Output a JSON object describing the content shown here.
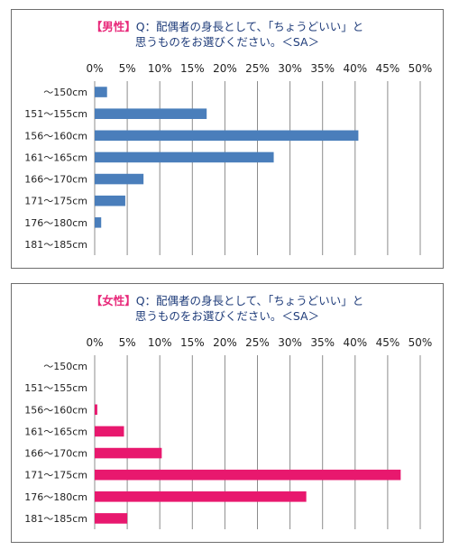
{
  "chart_data": [
    {
      "type": "bar",
      "orientation": "horizontal",
      "title_tag": "【男性】",
      "title_rest": "Q：配偶者の身長として、「ちょうどいい」と",
      "title_line2": "思うものをお選びください。＜SA＞",
      "categories": [
        "～150cm",
        "151～155cm",
        "156～160cm",
        "161～165cm",
        "166～170cm",
        "171～175cm",
        "176～180cm",
        "181～185cm"
      ],
      "values": [
        1.9,
        17.2,
        40.5,
        27.5,
        7.5,
        4.7,
        1.0,
        0
      ],
      "ticks": [
        "0%",
        "5%",
        "10%",
        "15%",
        "20%",
        "25%",
        "30%",
        "35%",
        "40%",
        "45%",
        "50%"
      ],
      "xlim": [
        0,
        50
      ],
      "grid": true,
      "color": "#4a7ebb",
      "tag_color": "#e8297a",
      "title_color": "#1f3c7a"
    },
    {
      "type": "bar",
      "orientation": "horizontal",
      "title_tag": "【女性】",
      "title_rest": "Q：配偶者の身長として、「ちょうどいい」と",
      "title_line2": "思うものをお選びください。＜SA＞",
      "categories": [
        "～150cm",
        "151～155cm",
        "156～160cm",
        "161～165cm",
        "166～170cm",
        "171～175cm",
        "176～180cm",
        "181～185cm"
      ],
      "values": [
        0,
        0,
        0.4,
        4.5,
        10.3,
        47.0,
        32.5,
        5.0
      ],
      "ticks": [
        "0%",
        "5%",
        "10%",
        "15%",
        "20%",
        "25%",
        "30%",
        "35%",
        "40%",
        "45%",
        "50%"
      ],
      "xlim": [
        0,
        50
      ],
      "grid": true,
      "color": "#e8186e",
      "tag_color": "#e8297a",
      "title_color": "#1f3c7a"
    }
  ]
}
